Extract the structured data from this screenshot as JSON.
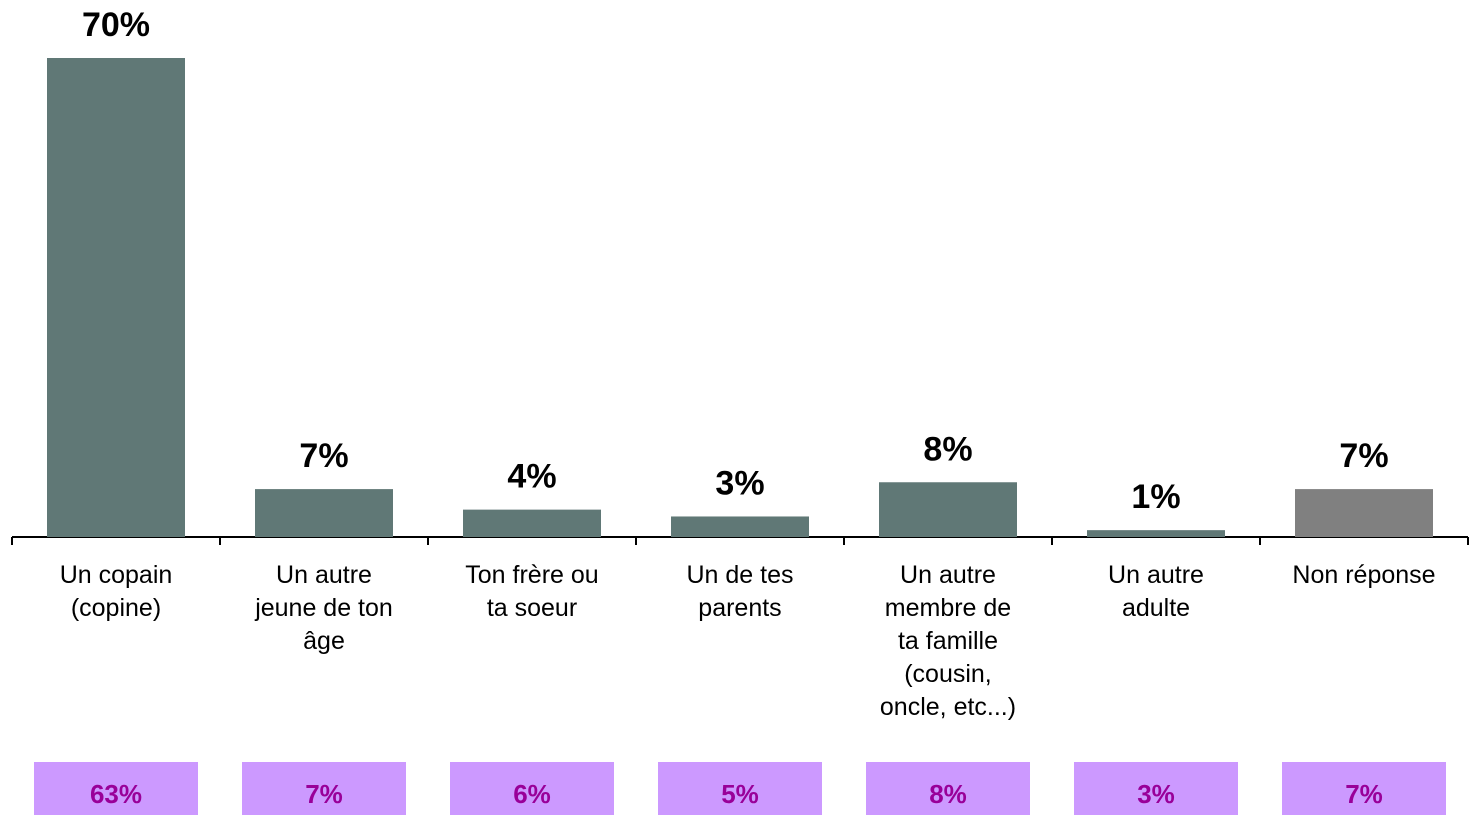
{
  "chart_data": {
    "type": "bar",
    "categories": [
      "Un copain\n(copine)",
      "Un autre\njeune de ton\nâge",
      "Ton frère ou\nta soeur",
      "Un de tes\nparents",
      "Un autre\nmembre de\nta famille\n(cousin,\noncle, etc...)",
      "Un autre\nadulte",
      "Non réponse"
    ],
    "values": [
      70,
      7,
      4,
      3,
      8,
      1,
      7
    ],
    "value_labels": [
      "70%",
      "7%",
      "4%",
      "3%",
      "8%",
      "1%",
      "7%"
    ],
    "colors": [
      "#607876",
      "#607876",
      "#607876",
      "#607876",
      "#607876",
      "#607876",
      "#808080"
    ],
    "ylim": [
      0,
      70
    ],
    "comparison": {
      "values": [
        63,
        7,
        6,
        5,
        8,
        3,
        7
      ],
      "value_labels": [
        "63%",
        "7%",
        "6%",
        "5%",
        "8%",
        "3%",
        "7%"
      ],
      "color": "#cc99ff",
      "text_color": "#990099"
    }
  }
}
